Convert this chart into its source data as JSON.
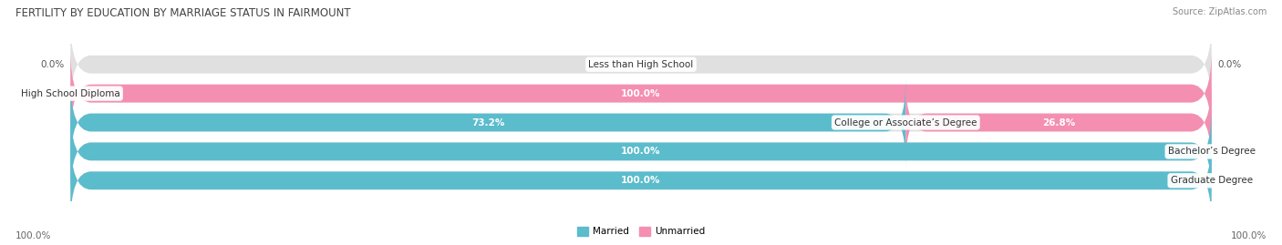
{
  "title": "FERTILITY BY EDUCATION BY MARRIAGE STATUS IN FAIRMOUNT",
  "source": "Source: ZipAtlas.com",
  "categories": [
    "Less than High School",
    "High School Diploma",
    "College or Associate’s Degree",
    "Bachelor’s Degree",
    "Graduate Degree"
  ],
  "married": [
    0.0,
    0.0,
    73.2,
    100.0,
    100.0
  ],
  "unmarried": [
    0.0,
    100.0,
    26.8,
    0.0,
    0.0
  ],
  "married_color": "#5bbccc",
  "unmarried_color": "#f48fb1",
  "bar_bg_color": "#e0e0e0",
  "bar_height": 0.62,
  "figsize": [
    14.06,
    2.69
  ],
  "dpi": 100,
  "legend_married": "Married",
  "legend_unmarried": "Unmarried",
  "title_fontsize": 8.5,
  "source_fontsize": 7,
  "label_fontsize": 7.5,
  "category_fontsize": 7.5,
  "axis_label_fontsize": 7.5,
  "bottom_left_label": "100.0%",
  "bottom_right_label": "100.0%"
}
